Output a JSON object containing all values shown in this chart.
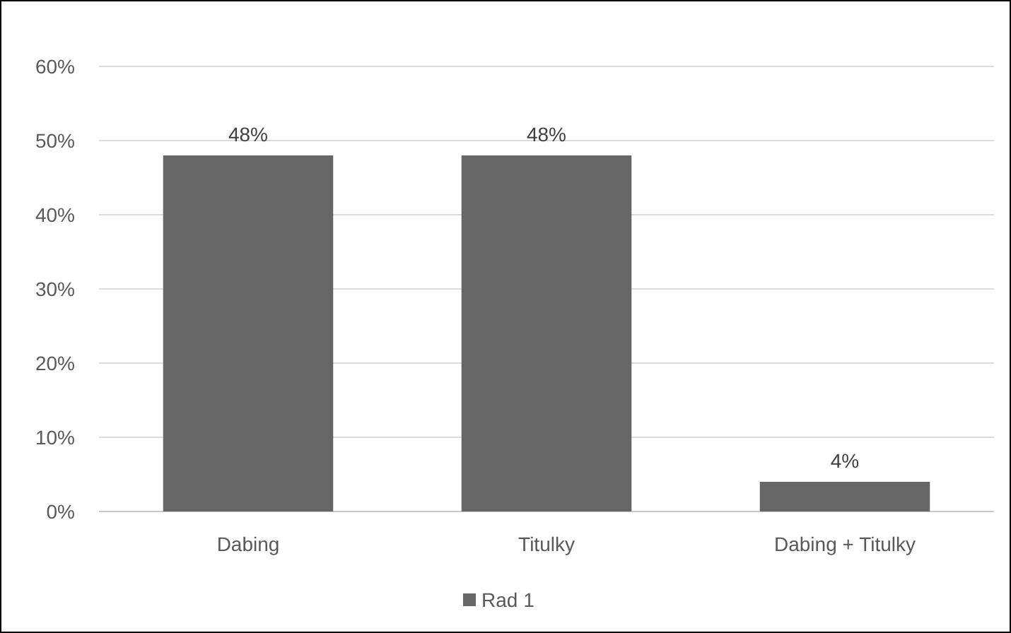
{
  "chart_data": {
    "type": "bar",
    "categories": [
      "Dabing",
      "Titulky",
      "Dabing + Titulky"
    ],
    "series": [
      {
        "name": "Rad 1",
        "color": "#666666",
        "values": [
          48,
          48,
          4
        ],
        "value_labels": [
          "48%",
          "48%",
          "4%"
        ]
      }
    ],
    "ylim": [
      0,
      60
    ],
    "yticks": [
      {
        "value": 0,
        "label": "0%"
      },
      {
        "value": 10,
        "label": "10%"
      },
      {
        "value": 20,
        "label": "20%"
      },
      {
        "value": 30,
        "label": "30%"
      },
      {
        "value": 40,
        "label": "40%"
      },
      {
        "value": 50,
        "label": "50%"
      },
      {
        "value": 60,
        "label": "60%"
      }
    ],
    "grid": "y",
    "legend": "bottom"
  }
}
